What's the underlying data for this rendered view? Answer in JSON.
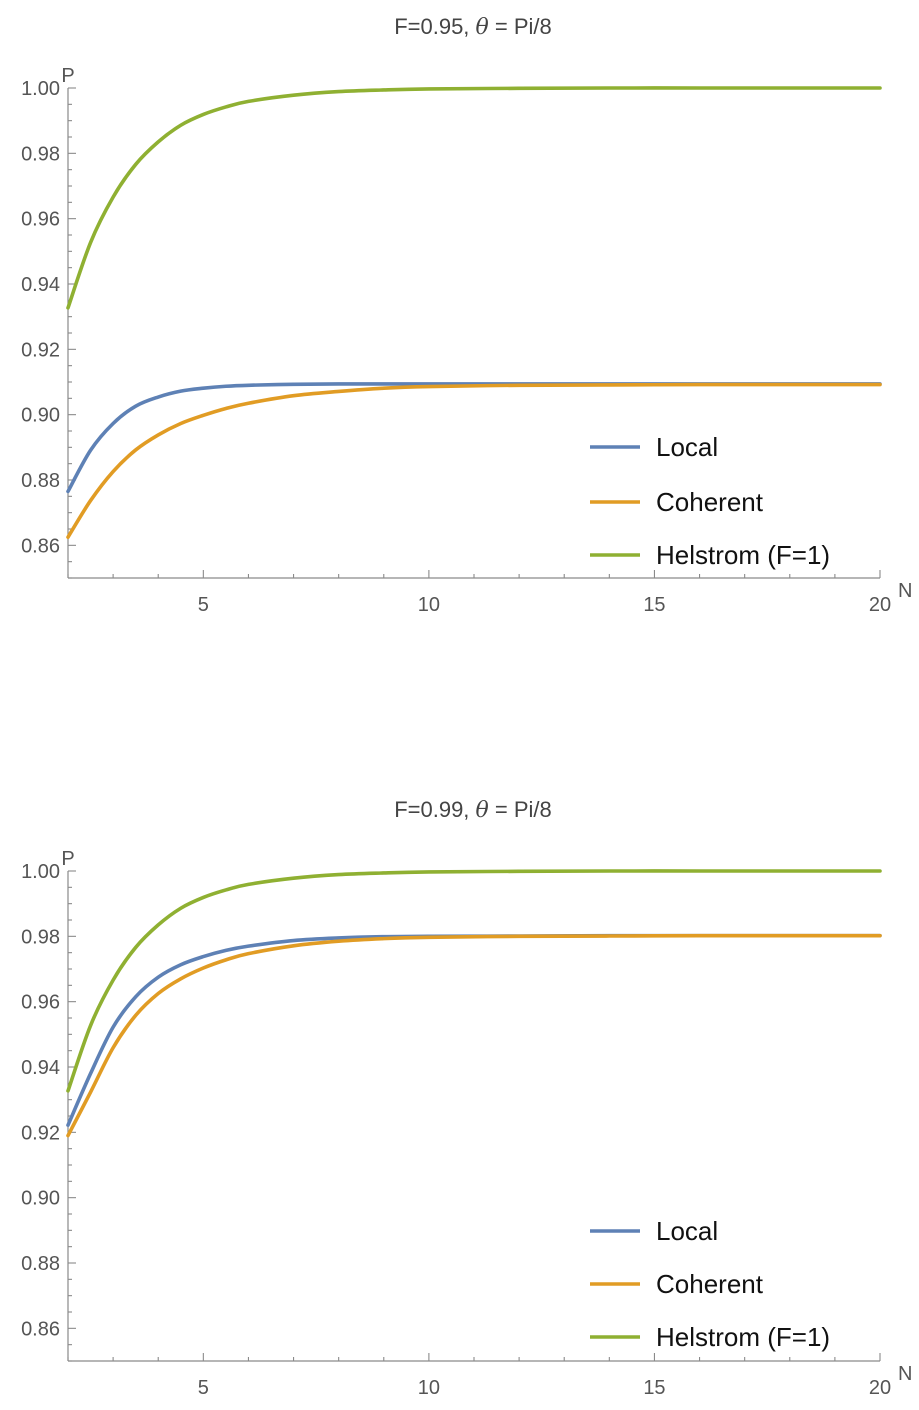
{
  "chart_data": [
    {
      "type": "line",
      "title": "F=0.95, θ = Pi/8",
      "title_parts": {
        "prefix": "F=0.95, ",
        "theta": "θ",
        "suffix": " = Pi/8"
      },
      "xlabel": "N",
      "ylabel": "P",
      "xlim": [
        2,
        20
      ],
      "ylim": [
        0.85,
        1.0
      ],
      "x_ticks": [
        5,
        10,
        15,
        20
      ],
      "x_tick_labels": [
        "5",
        "10",
        "15",
        "20"
      ],
      "y_ticks": [
        0.86,
        0.88,
        0.9,
        0.92,
        0.94,
        0.96,
        0.98,
        1.0
      ],
      "y_tick_labels": [
        "0.86",
        "0.88",
        "0.90",
        "0.92",
        "0.94",
        "0.96",
        "0.98",
        "1.00"
      ],
      "legend_position": "bottom-right",
      "grid": false,
      "x": [
        2,
        2.5,
        3,
        3.5,
        4,
        4.5,
        5,
        5.5,
        6,
        7,
        8,
        9,
        10,
        12,
        14,
        16,
        18,
        20
      ],
      "series": [
        {
          "name": "Local",
          "color": "#5E81B5",
          "values": [
            0.8765,
            0.8891,
            0.8973,
            0.9026,
            0.9054,
            0.9072,
            0.9081,
            0.9087,
            0.909,
            0.9093,
            0.9094,
            0.9094,
            0.9094,
            0.9094,
            0.9094,
            0.9094,
            0.9094,
            0.9094
          ]
        },
        {
          "name": "Coherent",
          "color": "#E19C24",
          "values": [
            0.8625,
            0.8737,
            0.8826,
            0.8892,
            0.8938,
            0.8973,
            0.8998,
            0.9019,
            0.9035,
            0.9058,
            0.9071,
            0.9081,
            0.9086,
            0.909,
            0.9091,
            0.9092,
            0.9092,
            0.9092
          ]
        },
        {
          "name": "Helstrom (F=1)",
          "color": "#8FB032",
          "values": [
            0.9327,
            0.9527,
            0.9666,
            0.9766,
            0.9835,
            0.9886,
            0.9919,
            0.9942,
            0.9959,
            0.9978,
            0.9989,
            0.9994,
            0.9997,
            0.9999,
            1.0,
            1.0,
            1.0,
            1.0
          ]
        }
      ]
    },
    {
      "type": "line",
      "title": "F=0.99, θ = Pi/8",
      "title_parts": {
        "prefix": "F=0.99, ",
        "theta": "θ",
        "suffix": " = Pi/8"
      },
      "xlabel": "N",
      "ylabel": "P",
      "xlim": [
        2,
        20
      ],
      "ylim": [
        0.85,
        1.0
      ],
      "x_ticks": [
        5,
        10,
        15,
        20
      ],
      "x_tick_labels": [
        "5",
        "10",
        "15",
        "20"
      ],
      "y_ticks": [
        0.86,
        0.88,
        0.9,
        0.92,
        0.94,
        0.96,
        0.98,
        1.0
      ],
      "y_tick_labels": [
        "0.86",
        "0.88",
        "0.90",
        "0.92",
        "0.94",
        "0.96",
        "0.98",
        "1.00"
      ],
      "legend_position": "bottom-right",
      "grid": false,
      "x": [
        2,
        2.5,
        3,
        3.5,
        4,
        4.5,
        5,
        5.5,
        6,
        7,
        8,
        9,
        10,
        12,
        14,
        16,
        18,
        20
      ],
      "series": [
        {
          "name": "Local",
          "color": "#5E81B5",
          "values": [
            0.9222,
            0.938,
            0.9522,
            0.9615,
            0.9675,
            0.9713,
            0.9738,
            0.9757,
            0.977,
            0.9787,
            0.9795,
            0.9799,
            0.98,
            0.9801,
            0.9802,
            0.9802,
            0.9802,
            0.9802
          ]
        },
        {
          "name": "Coherent",
          "color": "#E19C24",
          "values": [
            0.919,
            0.9323,
            0.9459,
            0.9558,
            0.9625,
            0.967,
            0.9703,
            0.9728,
            0.9747,
            0.9771,
            0.9785,
            0.9793,
            0.9797,
            0.98,
            0.9801,
            0.9802,
            0.9802,
            0.9802
          ]
        },
        {
          "name": "Helstrom (F=1)",
          "color": "#8FB032",
          "values": [
            0.9327,
            0.9527,
            0.9666,
            0.9766,
            0.9835,
            0.9886,
            0.9919,
            0.9942,
            0.9959,
            0.9978,
            0.9989,
            0.9994,
            0.9997,
            0.9999,
            1.0,
            1.0,
            1.0,
            1.0
          ]
        }
      ]
    }
  ]
}
